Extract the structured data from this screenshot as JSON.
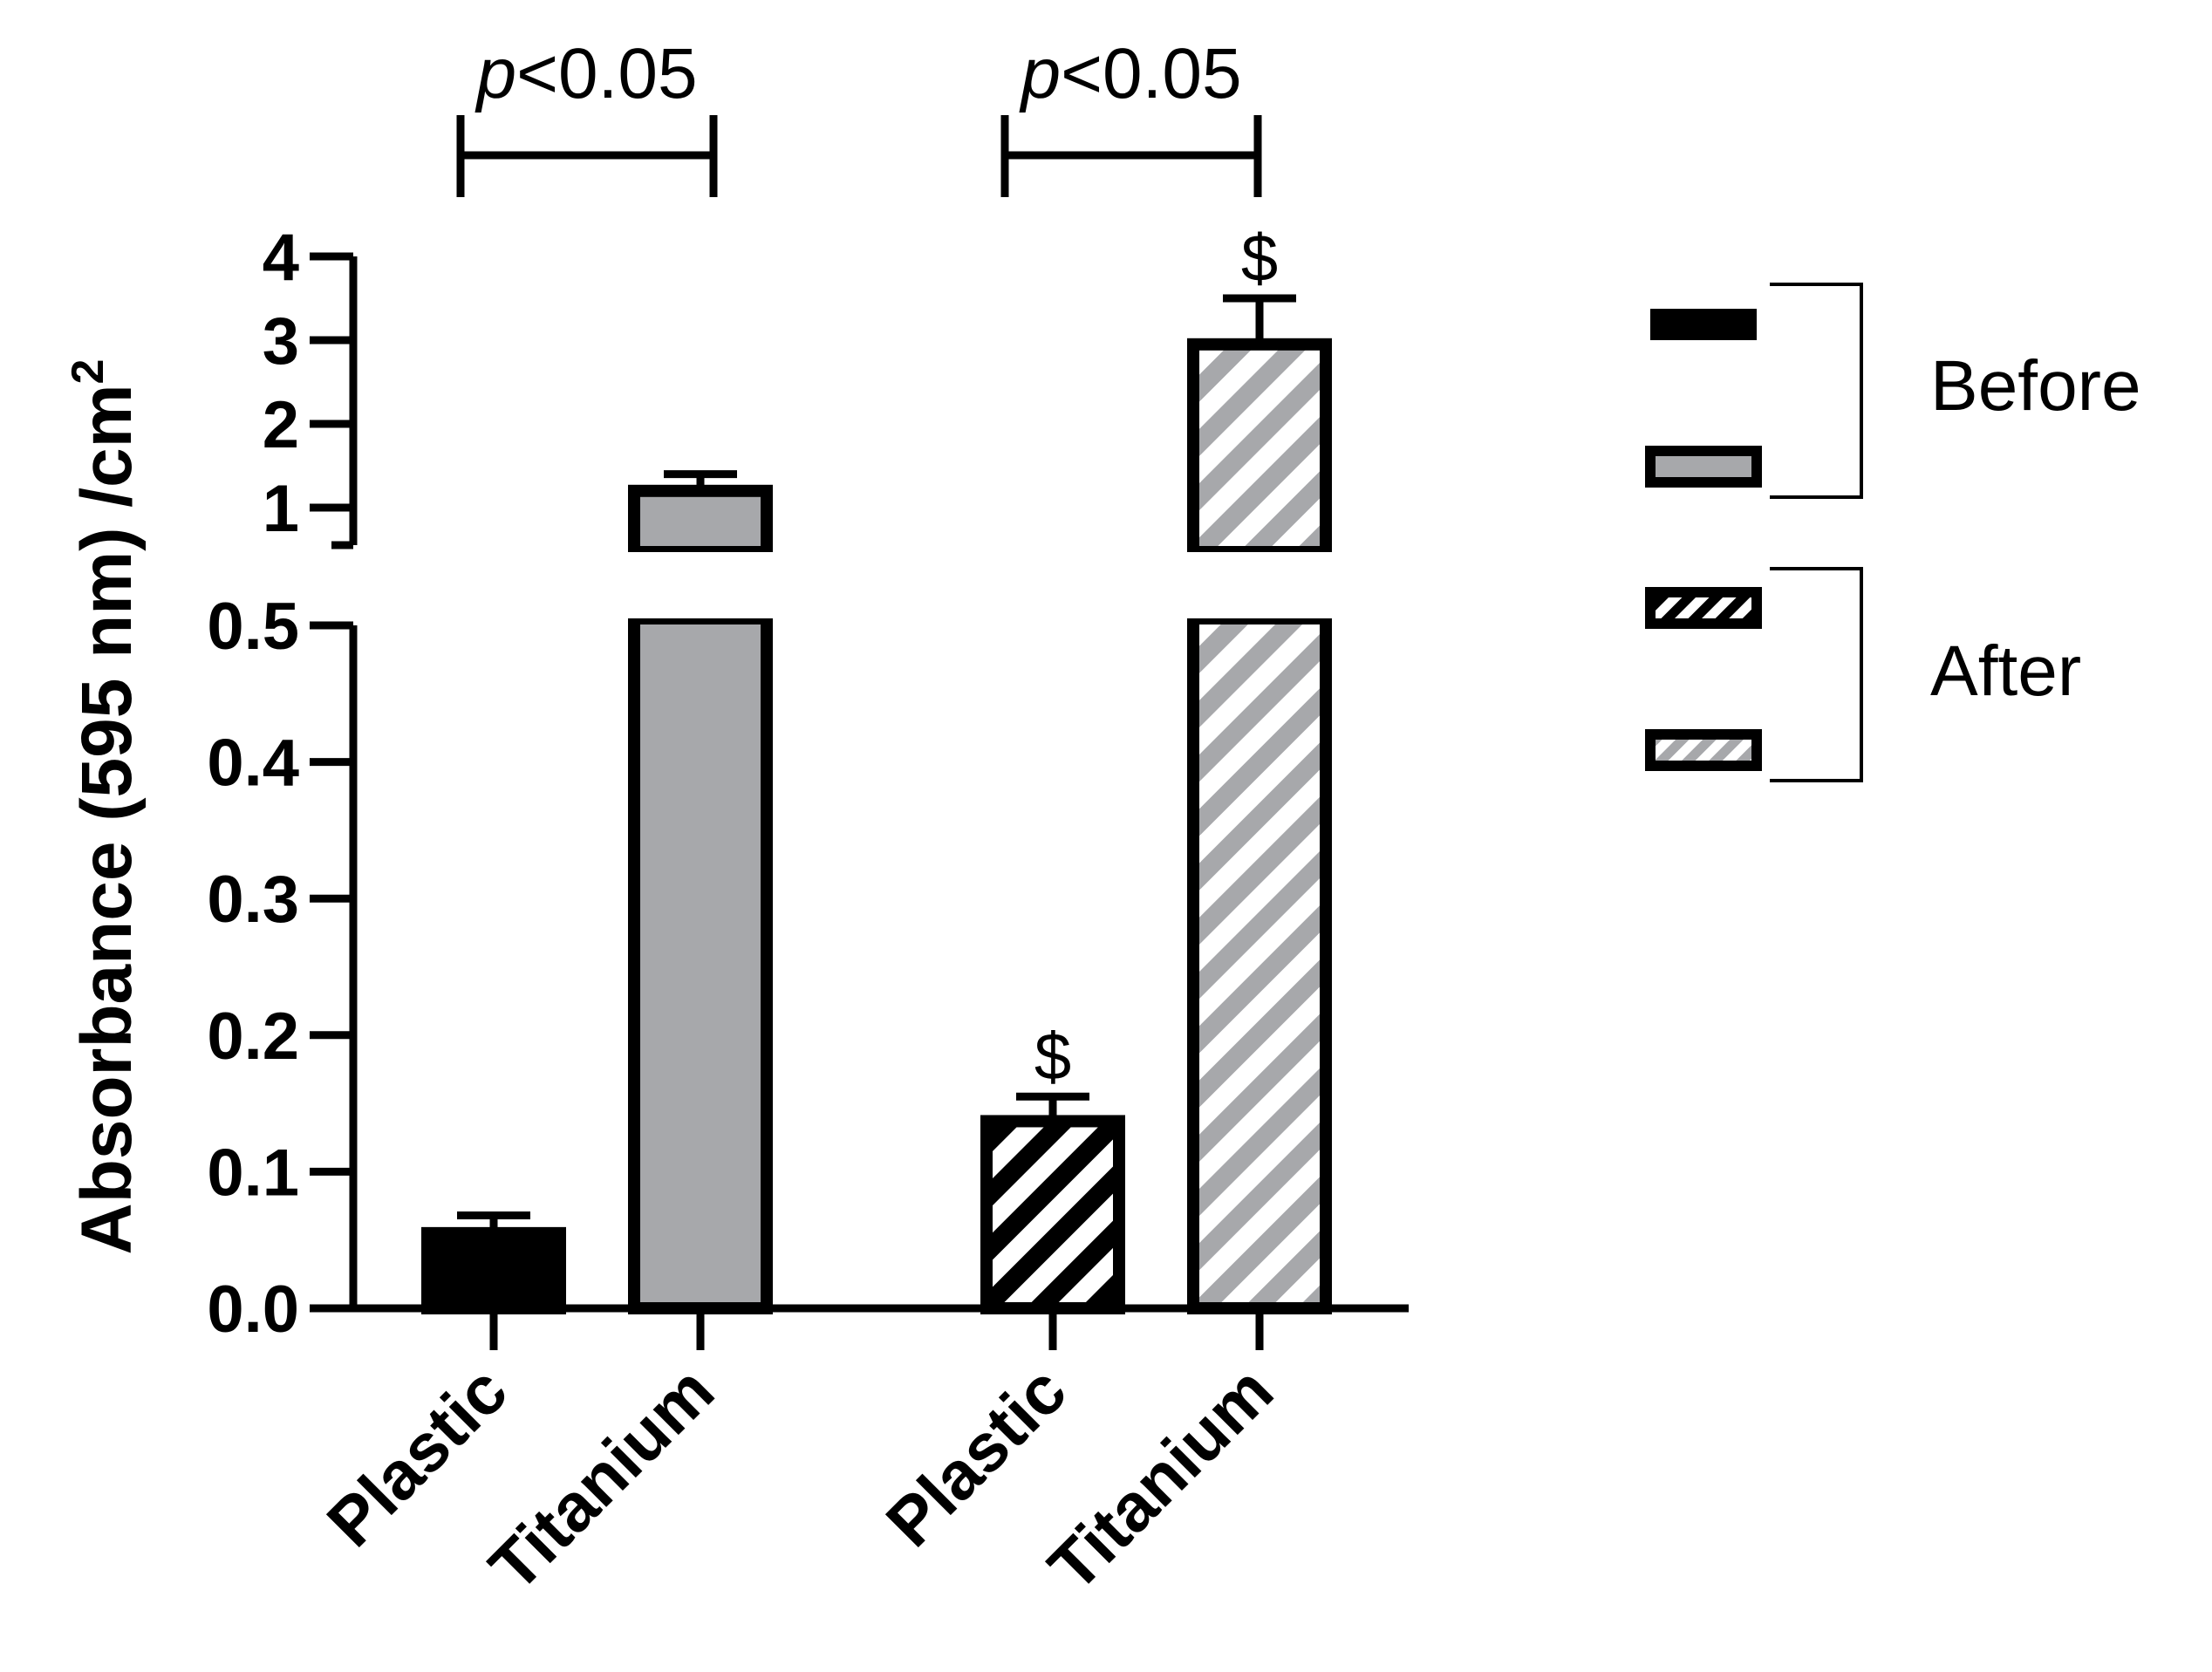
{
  "colors": {
    "ink": "#000000",
    "gray": "#a7a8ab",
    "white": "#ffffff"
  },
  "chart_data": {
    "type": "bar",
    "categories": [
      "Plastic",
      "Titanium",
      "Plastic",
      "Titanium"
    ],
    "values": [
      0.055,
      1.2,
      0.137,
      2.95
    ],
    "errors": [
      0.013,
      0.2,
      0.018,
      0.55
    ],
    "fills": [
      "solid-black",
      "solid-gray",
      "hatch-black",
      "hatch-gray"
    ],
    "markers": [
      "",
      "",
      "$",
      "$"
    ],
    "ylabel": "Absorbance (595 nm) /cm",
    "ylabel_superscript": "2",
    "y_segments": [
      {
        "ylim": [
          0,
          0.5
        ],
        "ticks": [
          "0.0",
          "0.1",
          "0.2",
          "0.3",
          "0.4",
          "0.5"
        ],
        "tick_values": [
          0,
          0.1,
          0.2,
          0.3,
          0.4,
          0.5
        ]
      },
      {
        "ylim": [
          0.5,
          4
        ],
        "ticks": [
          "1",
          "2",
          "3",
          "4"
        ],
        "tick_values": [
          1,
          2,
          3,
          4
        ]
      }
    ],
    "significance": [
      {
        "italic": "p",
        "text": "<0.05"
      },
      {
        "italic": "p",
        "text": "<0.05"
      }
    ],
    "legend": [
      {
        "label": "Before",
        "swatches": [
          "solid-black",
          "solid-gray"
        ]
      },
      {
        "label": "After",
        "swatches": [
          "hatch-black",
          "hatch-gray"
        ]
      }
    ]
  }
}
